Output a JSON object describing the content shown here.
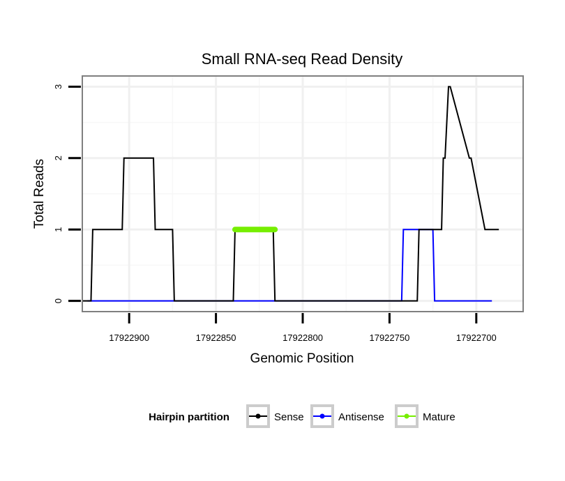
{
  "chart_data": {
    "type": "line",
    "title": "Small RNA-seq Read Density",
    "xlabel": "Genomic Position",
    "ylabel": "Total Reads",
    "xlim": [
      17922927,
      17922673
    ],
    "x_reversed": true,
    "ylim": [
      -0.15,
      3.15
    ],
    "x_ticks": [
      17922900,
      17922850,
      17922800,
      17922750,
      17922700
    ],
    "x_tick_labels": [
      "17922900",
      "17922850",
      "17922800",
      "17922750",
      "17922700"
    ],
    "y_ticks": [
      0,
      1,
      2,
      3
    ],
    "y_tick_labels": [
      "0",
      "1",
      "2",
      "3"
    ],
    "grid": true,
    "legend": {
      "title": "Hairpin partition",
      "position": "bottom",
      "entries": [
        "Sense",
        "Antisense",
        "Mature"
      ]
    },
    "series": [
      {
        "name": "Sense",
        "color": "#000000",
        "x": [
          17922927,
          17922922,
          17922921,
          17922904,
          17922903,
          17922886,
          17922885,
          17922875,
          17922874,
          17922840,
          17922839,
          17922817,
          17922816,
          17922734,
          17922733,
          17922720,
          17922719,
          17922718,
          17922716,
          17922715,
          17922704,
          17922703,
          17922695,
          17922694,
          17922691,
          17922690,
          17922687
        ],
        "y": [
          0,
          0,
          1,
          1,
          2,
          2,
          1,
          1,
          0,
          0,
          1,
          1,
          0,
          0,
          1,
          1,
          2,
          2,
          3,
          3,
          2,
          2,
          1,
          1,
          1,
          1,
          1
        ]
      },
      {
        "name": "Antisense",
        "color": "#0000ff",
        "x": [
          17922924,
          17922743,
          17922742,
          17922725,
          17922724,
          17922691
        ],
        "y": [
          0,
          0,
          1,
          1,
          0,
          0
        ]
      },
      {
        "name": "Mature",
        "color": "#76ee00",
        "x": [
          17922839,
          17922816
        ],
        "y": [
          1,
          1
        ]
      }
    ]
  }
}
